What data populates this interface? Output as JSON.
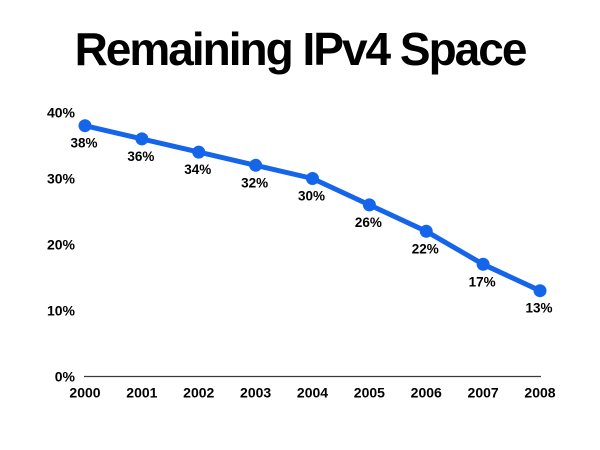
{
  "slide": {
    "title": "Remaining IPv4 Space"
  },
  "chart_data": {
    "type": "line",
    "title": "Remaining IPv4 Space",
    "categories": [
      "2000",
      "2001",
      "2002",
      "2003",
      "2004",
      "2005",
      "2006",
      "2007",
      "2008"
    ],
    "values": [
      38,
      36,
      34,
      32,
      30,
      26,
      22,
      17,
      13
    ],
    "data_labels": [
      "38%",
      "36%",
      "34%",
      "32%",
      "30%",
      "26%",
      "22%",
      "17%",
      "13%"
    ],
    "y_ticks": {
      "values": [
        0,
        10,
        20,
        30,
        40
      ],
      "labels": [
        "0%",
        "10%",
        "20%",
        "30%",
        "40%"
      ]
    },
    "ylim": [
      0,
      40
    ],
    "xlabel": "",
    "ylabel": "",
    "grid": false,
    "legend": "none",
    "marker": "circle",
    "series_color": "#1565EB",
    "axis_color": "#3a3a3a",
    "text_color": "#000000",
    "background_color": "#FFFFFF"
  }
}
